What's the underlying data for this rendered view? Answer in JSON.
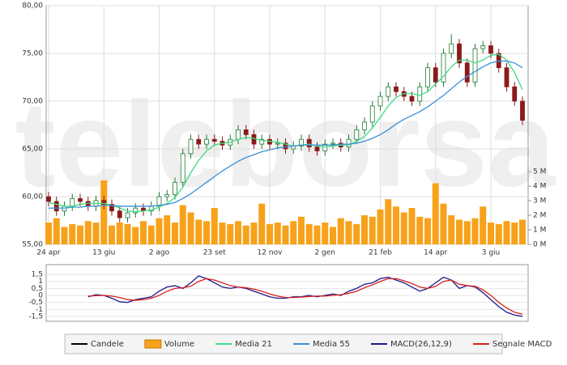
{
  "chart_data": [
    {
      "type": "candlestick",
      "watermark": "teleborsa",
      "categories": [
        "24 apr",
        null,
        null,
        null,
        null,
        null,
        null,
        "13 giu",
        null,
        null,
        null,
        null,
        null,
        null,
        "2 ago",
        null,
        null,
        null,
        null,
        null,
        null,
        "23 set",
        null,
        null,
        null,
        null,
        null,
        null,
        "12 nov",
        null,
        null,
        null,
        null,
        null,
        null,
        "2 gen",
        null,
        null,
        null,
        null,
        null,
        null,
        "21 feb",
        null,
        null,
        null,
        null,
        null,
        null,
        "14 apr",
        null,
        null,
        null,
        null,
        null,
        null,
        "3 giu",
        null,
        null,
        null,
        null
      ],
      "candles": {
        "name": "Candele",
        "color": "#000000",
        "color_up": "#1e7a32",
        "color_down": "#8b1a1a"
      },
      "open": [
        60,
        59.5,
        58.5,
        59.0,
        59.8,
        59.5,
        59.0,
        59.6,
        59.2,
        58.5,
        57.8,
        58.3,
        58.8,
        58.5,
        59.0,
        60.0,
        60.2,
        61.5,
        64.5,
        66.0,
        65.5,
        66.0,
        65.8,
        65.4,
        66.0,
        67.0,
        66.5,
        65.5,
        66.0,
        65.5,
        65.6,
        65.0,
        65.3,
        66.0,
        65.2,
        64.8,
        65.5,
        65.6,
        65.2,
        66.0,
        67.0,
        67.8,
        69.5,
        70.5,
        71.5,
        71.0,
        70.5,
        70.0,
        71.5,
        73.5,
        72.0,
        75.0,
        76.0,
        74.0,
        72.0,
        75.5,
        75.8,
        75.0,
        73.5,
        71.5,
        70.0
      ],
      "high": [
        60.5,
        60.0,
        59.5,
        60.3,
        60.3,
        60.0,
        60.1,
        60.1,
        59.7,
        59.0,
        58.8,
        59.3,
        59.3,
        59.5,
        60.5,
        60.7,
        62.0,
        65.0,
        66.5,
        66.5,
        66.5,
        66.5,
        66.3,
        66.5,
        67.5,
        67.5,
        67.0,
        66.5,
        66.5,
        66.1,
        66.1,
        65.8,
        66.5,
        66.5,
        65.7,
        66.0,
        66.1,
        66.1,
        66.5,
        67.5,
        68.3,
        70.0,
        71.0,
        72.0,
        72.0,
        71.5,
        71.0,
        72.0,
        74.0,
        74.0,
        75.5,
        77.0,
        76.5,
        74.5,
        76.0,
        76.3,
        76.3,
        75.5,
        74.0,
        72.0,
        70.5
      ],
      "low": [
        59.0,
        58.0,
        58.0,
        58.5,
        59.0,
        58.5,
        58.5,
        58.7,
        58.0,
        57.3,
        57.3,
        57.8,
        58.0,
        58.0,
        58.5,
        59.5,
        59.7,
        61.0,
        64.0,
        65.0,
        65.0,
        65.3,
        64.9,
        64.9,
        65.5,
        66.0,
        65.0,
        65.0,
        65.0,
        65.0,
        64.5,
        64.5,
        64.8,
        64.7,
        64.3,
        64.3,
        65.0,
        64.7,
        64.7,
        65.5,
        66.5,
        67.3,
        69.0,
        70.0,
        70.5,
        70.0,
        69.5,
        69.5,
        71.0,
        71.5,
        71.5,
        74.5,
        73.5,
        71.5,
        71.5,
        75.0,
        74.5,
        73.0,
        71.0,
        69.5,
        67.5
      ],
      "close": [
        59.5,
        58.5,
        59.0,
        59.8,
        59.5,
        59.0,
        59.6,
        59.2,
        58.5,
        57.8,
        58.3,
        58.8,
        58.5,
        59.0,
        60.0,
        60.2,
        61.5,
        64.5,
        66.0,
        65.5,
        66.0,
        65.8,
        65.4,
        66.0,
        67.0,
        66.5,
        65.5,
        66.0,
        65.5,
        65.6,
        65.0,
        65.3,
        66.0,
        65.2,
        64.8,
        65.5,
        65.6,
        65.2,
        66.0,
        67.0,
        67.8,
        69.5,
        70.5,
        71.5,
        71.0,
        70.5,
        70.0,
        71.5,
        73.5,
        72.0,
        75.0,
        76.0,
        74.0,
        72.0,
        75.5,
        75.8,
        75.0,
        73.5,
        71.5,
        70.0,
        68.0
      ],
      "series": [
        {
          "name": "Volume",
          "color": "#f7a21b",
          "type": "bar",
          "axis": "y2",
          "values": [
            1.5,
            1.8,
            1.2,
            1.4,
            1.3,
            1.6,
            1.5,
            4.4,
            1.3,
            1.5,
            1.4,
            1.2,
            1.6,
            1.3,
            1.8,
            2.0,
            1.5,
            2.7,
            2.2,
            1.7,
            1.6,
            2.5,
            1.5,
            1.4,
            1.6,
            1.3,
            1.5,
            2.8,
            1.4,
            1.5,
            1.3,
            1.6,
            1.9,
            1.4,
            1.3,
            1.5,
            1.2,
            1.8,
            1.6,
            1.4,
            2.0,
            1.9,
            2.4,
            3.1,
            2.6,
            2.2,
            2.5,
            1.9,
            1.8,
            4.2,
            2.8,
            2.0,
            1.7,
            1.6,
            1.8,
            2.6,
            1.5,
            1.4,
            1.6,
            1.5,
            1.7
          ]
        },
        {
          "name": "Media 21",
          "color": "#3ddc84",
          "type": "line",
          "values": [
            59.4,
            59.2,
            59.0,
            59.0,
            59.2,
            59.3,
            59.3,
            59.3,
            59.1,
            58.8,
            58.5,
            58.4,
            58.5,
            58.6,
            58.9,
            59.3,
            59.9,
            61.0,
            62.5,
            63.8,
            64.8,
            65.4,
            65.6,
            65.7,
            66.0,
            66.2,
            66.1,
            65.9,
            65.8,
            65.7,
            65.5,
            65.3,
            65.4,
            65.5,
            65.3,
            65.2,
            65.3,
            65.4,
            65.4,
            65.8,
            66.3,
            67.2,
            68.3,
            69.5,
            70.4,
            70.8,
            70.8,
            70.6,
            71.0,
            71.8,
            72.6,
            73.6,
            74.3,
            74.3,
            74.0,
            74.3,
            74.8,
            74.9,
            74.3,
            73.0,
            71.2
          ]
        },
        {
          "name": "Media 55",
          "color": "#3a8fd8",
          "type": "line",
          "values": [
            58.8,
            58.8,
            58.8,
            58.9,
            58.9,
            59.0,
            59.0,
            59.1,
            59.1,
            59.0,
            59.0,
            59.0,
            59.0,
            59.0,
            59.1,
            59.2,
            59.4,
            59.8,
            60.3,
            60.9,
            61.5,
            62.1,
            62.7,
            63.2,
            63.7,
            64.1,
            64.4,
            64.7,
            64.9,
            65.1,
            65.2,
            65.3,
            65.4,
            65.4,
            65.4,
            65.4,
            65.4,
            65.5,
            65.5,
            65.6,
            65.8,
            66.1,
            66.5,
            67.0,
            67.6,
            68.1,
            68.5,
            68.9,
            69.4,
            70.0,
            70.6,
            71.3,
            72.0,
            72.6,
            73.1,
            73.6,
            74.0,
            74.2,
            74.2,
            74.0,
            73.5
          ]
        }
      ],
      "ylim": [
        55,
        80
      ],
      "yticks": [
        {
          "value": 55,
          "label": "55,00"
        },
        {
          "value": 60,
          "label": "60,00"
        },
        {
          "value": 65,
          "label": "65,00"
        },
        {
          "value": 70,
          "label": "70,00"
        },
        {
          "value": 75,
          "label": "75,00"
        },
        {
          "value": 80,
          "label": "80,00"
        }
      ],
      "y2lim": [
        0,
        16.4
      ],
      "y2ticks": [
        {
          "value": 0,
          "label": "0 M"
        },
        {
          "value": 1,
          "label": "1 M"
        },
        {
          "value": 2,
          "label": "2 M"
        },
        {
          "value": 3,
          "label": "3 M"
        },
        {
          "value": 4,
          "label": "4 M"
        },
        {
          "value": 5,
          "label": "5 M"
        }
      ],
      "grid": true
    },
    {
      "type": "line",
      "series": [
        {
          "name": "MACD(26,12,9)",
          "color": "#1a1a8c",
          "values": [
            null,
            null,
            null,
            null,
            null,
            -0.1,
            0.05,
            0.0,
            -0.2,
            -0.45,
            -0.5,
            -0.3,
            -0.2,
            -0.1,
            0.3,
            0.6,
            0.7,
            0.5,
            0.9,
            1.4,
            1.2,
            0.9,
            0.6,
            0.5,
            0.6,
            0.5,
            0.3,
            0.1,
            -0.1,
            -0.2,
            -0.2,
            -0.1,
            -0.1,
            0.0,
            -0.1,
            0.0,
            0.1,
            0.0,
            0.3,
            0.5,
            0.8,
            0.9,
            1.2,
            1.3,
            1.1,
            0.9,
            0.6,
            0.3,
            0.5,
            0.9,
            1.3,
            1.1,
            0.5,
            0.7,
            0.6,
            0.2,
            -0.3,
            -0.8,
            -1.2,
            -1.4,
            -1.5
          ]
        },
        {
          "name": "Segnale MACD",
          "color": "#d82020",
          "values": [
            null,
            null,
            null,
            null,
            null,
            -0.05,
            -0.02,
            0.0,
            -0.05,
            -0.15,
            -0.3,
            -0.35,
            -0.3,
            -0.2,
            0.0,
            0.3,
            0.5,
            0.55,
            0.65,
            1.0,
            1.2,
            1.1,
            0.9,
            0.7,
            0.6,
            0.55,
            0.45,
            0.3,
            0.1,
            -0.05,
            -0.15,
            -0.15,
            -0.12,
            -0.08,
            -0.05,
            -0.05,
            0.0,
            0.05,
            0.15,
            0.3,
            0.55,
            0.75,
            1.0,
            1.2,
            1.2,
            1.05,
            0.85,
            0.6,
            0.5,
            0.65,
            1.0,
            1.1,
            0.8,
            0.7,
            0.65,
            0.4,
            0.0,
            -0.5,
            -0.9,
            -1.2,
            -1.35
          ]
        }
      ],
      "ylim": [
        -1.85,
        2.2
      ],
      "yticks": [
        {
          "value": 1.5,
          "label": "1,5"
        },
        1,
        {
          "value": 0.5,
          "label": "0,5"
        },
        0,
        {
          "value": -0.5,
          "label": "-0,5"
        },
        -1,
        {
          "value": -1.5,
          "label": "-1,5"
        }
      ],
      "grid": true
    }
  ]
}
